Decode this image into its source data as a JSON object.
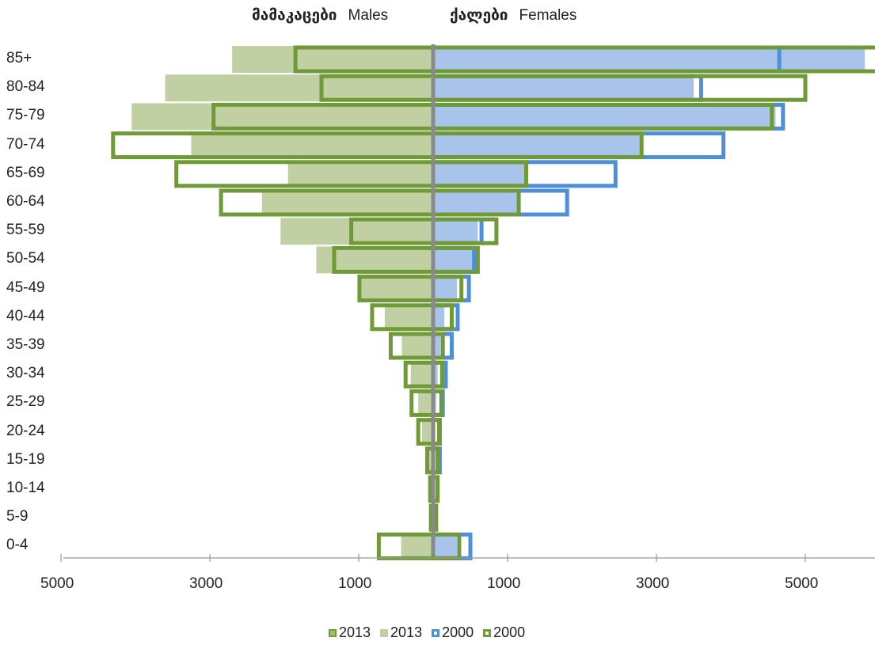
{
  "chart_data": {
    "type": "bar",
    "orientation": "horizontal-population-pyramid",
    "headers": {
      "males_ka": "მამაკაცები",
      "males_en": "Males",
      "females_ka": "ქალები",
      "females_en": "Females"
    },
    "categories": [
      "85+",
      "80-84",
      "75-79",
      "70-74",
      "65-69",
      "60-64",
      "55-59",
      "50-54",
      "45-49",
      "40-44",
      "35-39",
      "30-34",
      "25-29",
      "20-24",
      "15-19",
      "10-14",
      "5-9",
      "0-4"
    ],
    "x_ticks": [
      "5000",
      "3000",
      "1000",
      "1000",
      "3000",
      "5000"
    ],
    "series": [
      {
        "name": "2013",
        "side": "female",
        "style": "filled",
        "color": "#a9c4ea",
        "values": [
          5800,
          3500,
          4600,
          2800,
          1250,
          1150,
          600,
          550,
          320,
          150,
          100,
          60,
          40,
          30,
          25,
          20,
          15,
          320
        ]
      },
      {
        "name": "2013",
        "side": "male",
        "style": "filled",
        "color": "#c0d0a2",
        "values": [
          2700,
          3600,
          4050,
          3250,
          1950,
          2300,
          2050,
          1570,
          1000,
          650,
          420,
          300,
          200,
          150,
          60,
          40,
          30,
          430
        ]
      },
      {
        "name": "2000",
        "side": "female",
        "style": "outline",
        "color": "#4f8fd8",
        "values": [
          4650,
          3600,
          4700,
          3900,
          2450,
          1800,
          650,
          550,
          480,
          330,
          250,
          170,
          130,
          90,
          90,
          60,
          40,
          500
        ]
      },
      {
        "name": "2000",
        "side": "male",
        "style": "outline",
        "color": "#6f9a37",
        "values": [
          1850,
          1500,
          2950,
          4300,
          3450,
          2850,
          1100,
          1330,
          990,
          820,
          570,
          370,
          290,
          200,
          80,
          40,
          30,
          730
        ]
      },
      {
        "name": "2000",
        "side": "female",
        "style": "outline",
        "color": "#6f9a37",
        "values": [
          6200,
          5000,
          4550,
          2800,
          1250,
          1150,
          850,
          600,
          380,
          250,
          130,
          120,
          110,
          80,
          60,
          60,
          40,
          350
        ]
      }
    ],
    "legend": [
      {
        "label": "2013",
        "swatch": "pattern-green"
      },
      {
        "label": "2013",
        "swatch": "light-green"
      },
      {
        "label": "2000",
        "swatch": "blue-outline"
      },
      {
        "label": "2000",
        "swatch": "green-outline"
      }
    ],
    "xlim": [
      -5000,
      6000
    ],
    "grid": false,
    "legend_position": "bottom"
  }
}
